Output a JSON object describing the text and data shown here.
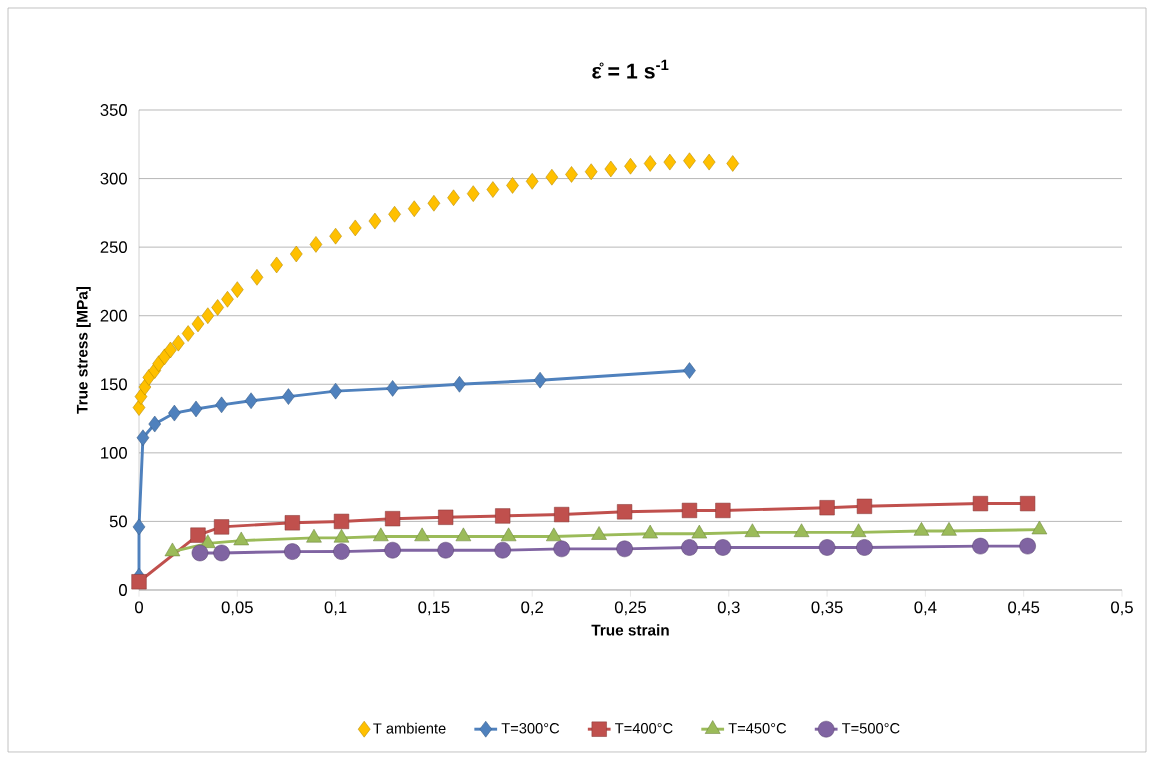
{
  "chart_data": {
    "type": "line",
    "title": "ε̊ = 1 s$^{-1}$",
    "xlabel": "True strain",
    "ylabel": "True stress [MPa]",
    "xlim": [
      0,
      0.5
    ],
    "ylim": [
      0,
      350
    ],
    "xticks": [
      0,
      {
        "value": 0.05,
        "label": "0,05"
      },
      {
        "value": 0.1,
        "label": "0,1"
      },
      {
        "value": 0.15,
        "label": "0,15"
      },
      {
        "value": 0.2,
        "label": "0,2"
      },
      {
        "value": 0.25,
        "label": "0,25"
      },
      {
        "value": 0.3,
        "label": "0,3"
      },
      {
        "value": 0.35,
        "label": "0,35"
      },
      {
        "value": 0.4,
        "label": "0,4"
      },
      {
        "value": 0.45,
        "label": "0,45"
      },
      {
        "value": 0.5,
        "label": "0,5"
      }
    ],
    "yticks": [
      0,
      50,
      100,
      150,
      200,
      250,
      300,
      350
    ],
    "grid": "y",
    "legend": "bottom",
    "series": [
      {
        "name": "T ambiente",
        "type": "scatter",
        "marker": "diamond",
        "color": "#ffc000",
        "x": [
          0,
          0.001,
          0.003,
          0.005,
          0.008,
          0.01,
          0.013,
          0.016,
          0.02,
          0.025,
          0.03,
          0.035,
          0.04,
          0.045,
          0.05,
          0.06,
          0.07,
          0.08,
          0.09,
          0.1,
          0.11,
          0.12,
          0.13,
          0.14,
          0.15,
          0.16,
          0.17,
          0.18,
          0.19,
          0.2,
          0.21,
          0.22,
          0.23,
          0.24,
          0.25,
          0.26,
          0.27,
          0.28,
          0.29,
          0.302
        ],
        "values": [
          133,
          141,
          148,
          155,
          160,
          165,
          170,
          175,
          180,
          187,
          194,
          200,
          206,
          212,
          219,
          228,
          237,
          245,
          252,
          258,
          264,
          269,
          274,
          278,
          282,
          286,
          289,
          292,
          295,
          298,
          301,
          303,
          305,
          307,
          309,
          311,
          312,
          313,
          312,
          311
        ]
      },
      {
        "name": "T=300°C",
        "marker": "diamond",
        "color": "#4f81bd",
        "x": [
          0,
          0,
          0.002,
          0.008,
          0.018,
          0.029,
          0.042,
          0.057,
          0.076,
          0.1,
          0.129,
          0.163,
          0.204,
          0.28
        ],
        "values": [
          10,
          46,
          111,
          121,
          129,
          132,
          135,
          138,
          141,
          145,
          147,
          150,
          153,
          160
        ]
      },
      {
        "name": "T=400°C",
        "marker": "square",
        "color": "#c0504d",
        "x": [
          0,
          0.03,
          0.042,
          0.078,
          0.103,
          0.129,
          0.156,
          0.185,
          0.215,
          0.247,
          0.28,
          0.297,
          0.35,
          0.369,
          0.428,
          0.452
        ],
        "values": [
          6,
          40,
          46,
          49,
          50,
          52,
          53,
          54,
          55,
          57,
          58,
          58,
          60,
          61,
          63,
          63
        ]
      },
      {
        "name": "T=450°C",
        "marker": "triangle",
        "color": "#9bbb59",
        "x": [
          0.017,
          0.035,
          0.052,
          0.089,
          0.103,
          0.123,
          0.144,
          0.165,
          0.188,
          0.211,
          0.234,
          0.26,
          0.285,
          0.312,
          0.337,
          0.366,
          0.398,
          0.412,
          0.458
        ],
        "values": [
          28,
          34,
          36,
          38,
          38,
          39,
          39,
          39,
          39,
          39,
          40,
          41,
          41,
          42,
          42,
          42,
          43,
          43,
          44
        ]
      },
      {
        "name": "T=500°C",
        "marker": "circle",
        "color": "#8064a2",
        "x": [
          0.031,
          0.042,
          0.078,
          0.103,
          0.129,
          0.156,
          0.185,
          0.215,
          0.247,
          0.28,
          0.297,
          0.35,
          0.369,
          0.428,
          0.452
        ],
        "values": [
          27,
          27,
          28,
          28,
          29,
          29,
          29,
          30,
          30,
          31,
          31,
          31,
          31,
          32,
          32
        ]
      }
    ]
  }
}
